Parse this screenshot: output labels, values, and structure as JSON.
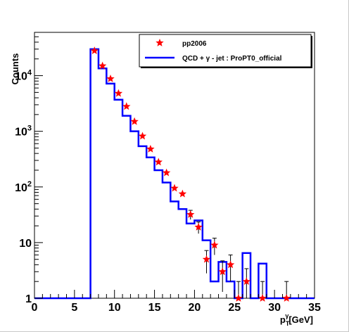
{
  "chart_data": {
    "type": "histogram",
    "xlabel": "p",
    "xlabel_sub": "T",
    "xlabel_sup": "γ",
    "xlabel_unit": "[GeV]",
    "ylabel": "Counts",
    "xlim": [
      0,
      35
    ],
    "ylim": [
      1,
      60000
    ],
    "yscale": "log",
    "x_ticks": [
      0,
      5,
      10,
      15,
      20,
      25,
      30,
      35
    ],
    "y_ticks": [
      {
        "value": 1,
        "label": "1"
      },
      {
        "value": 10,
        "label": "10"
      },
      {
        "value": 100,
        "label": "10",
        "exp": "2"
      },
      {
        "value": 1000,
        "label": "10",
        "exp": "3"
      },
      {
        "value": 10000,
        "label": "10",
        "exp": "4"
      }
    ],
    "legend": {
      "position": "top-right",
      "entries": [
        {
          "label": "pp2006",
          "marker": "star",
          "color": "#ff0000"
        },
        {
          "label": "QCD + γ - jet : ProPT0_official",
          "marker": "line",
          "color": "#0000ff"
        }
      ]
    },
    "series": [
      {
        "name": "pp2006",
        "kind": "points",
        "color": "#ff0000",
        "points": [
          {
            "x": 7.5,
            "y": 28000,
            "err": 0
          },
          {
            "x": 8.5,
            "y": 15000,
            "err": 0
          },
          {
            "x": 9.5,
            "y": 8800,
            "err": 0
          },
          {
            "x": 10.5,
            "y": 4800,
            "err": 0
          },
          {
            "x": 11.5,
            "y": 2800,
            "err": 0
          },
          {
            "x": 12.5,
            "y": 1500,
            "err": 0
          },
          {
            "x": 13.5,
            "y": 820,
            "err": 0
          },
          {
            "x": 14.5,
            "y": 480,
            "err": 0
          },
          {
            "x": 15.5,
            "y": 280,
            "err": 0
          },
          {
            "x": 16.5,
            "y": 180,
            "err": 0
          },
          {
            "x": 17.5,
            "y": 95,
            "err": 0
          },
          {
            "x": 18.5,
            "y": 75,
            "err": 0
          },
          {
            "x": 19.5,
            "y": 32,
            "err": 6
          },
          {
            "x": 20.5,
            "y": 19,
            "err": 4.5
          },
          {
            "x": 21.5,
            "y": 5,
            "err": 2.2
          },
          {
            "x": 22.5,
            "y": 9,
            "err": 3
          },
          {
            "x": 23.5,
            "y": 3,
            "err": 1.7
          },
          {
            "x": 24.5,
            "y": 4,
            "err": 2
          },
          {
            "x": 25.5,
            "y": 1,
            "err": 1
          },
          {
            "x": 26.5,
            "y": 2,
            "err": 1.4
          },
          {
            "x": 28.5,
            "y": 1,
            "err": 1
          },
          {
            "x": 31.5,
            "y": 1,
            "err": 1
          }
        ]
      },
      {
        "name": "QCD + γ - jet : ProPT0_official",
        "kind": "step",
        "color": "#0000ff",
        "bins": [
          {
            "lo": 0,
            "hi": 7,
            "y": 1
          },
          {
            "lo": 7,
            "hi": 8,
            "y": 30000
          },
          {
            "lo": 8,
            "hi": 9,
            "y": 13500
          },
          {
            "lo": 9,
            "hi": 10,
            "y": 7200
          },
          {
            "lo": 10,
            "hi": 11,
            "y": 3700
          },
          {
            "lo": 11,
            "hi": 12,
            "y": 1900
          },
          {
            "lo": 12,
            "hi": 13,
            "y": 1000
          },
          {
            "lo": 13,
            "hi": 14,
            "y": 540
          },
          {
            "lo": 14,
            "hi": 15,
            "y": 340
          },
          {
            "lo": 15,
            "hi": 16,
            "y": 200
          },
          {
            "lo": 16,
            "hi": 17,
            "y": 120
          },
          {
            "lo": 17,
            "hi": 18,
            "y": 55
          },
          {
            "lo": 18,
            "hi": 19,
            "y": 40
          },
          {
            "lo": 19,
            "hi": 20,
            "y": 22
          },
          {
            "lo": 20,
            "hi": 21,
            "y": 25
          },
          {
            "lo": 21,
            "hi": 22,
            "y": 11
          },
          {
            "lo": 22,
            "hi": 23,
            "y": 2
          },
          {
            "lo": 23,
            "hi": 24,
            "y": 4.5
          },
          {
            "lo": 24,
            "hi": 25,
            "y": 2
          },
          {
            "lo": 25,
            "hi": 26,
            "y": 1
          },
          {
            "lo": 26,
            "hi": 27,
            "y": 6.5
          },
          {
            "lo": 27,
            "hi": 28,
            "y": 1
          },
          {
            "lo": 28,
            "hi": 29,
            "y": 4.2
          },
          {
            "lo": 29,
            "hi": 35,
            "y": 1
          }
        ]
      }
    ]
  }
}
